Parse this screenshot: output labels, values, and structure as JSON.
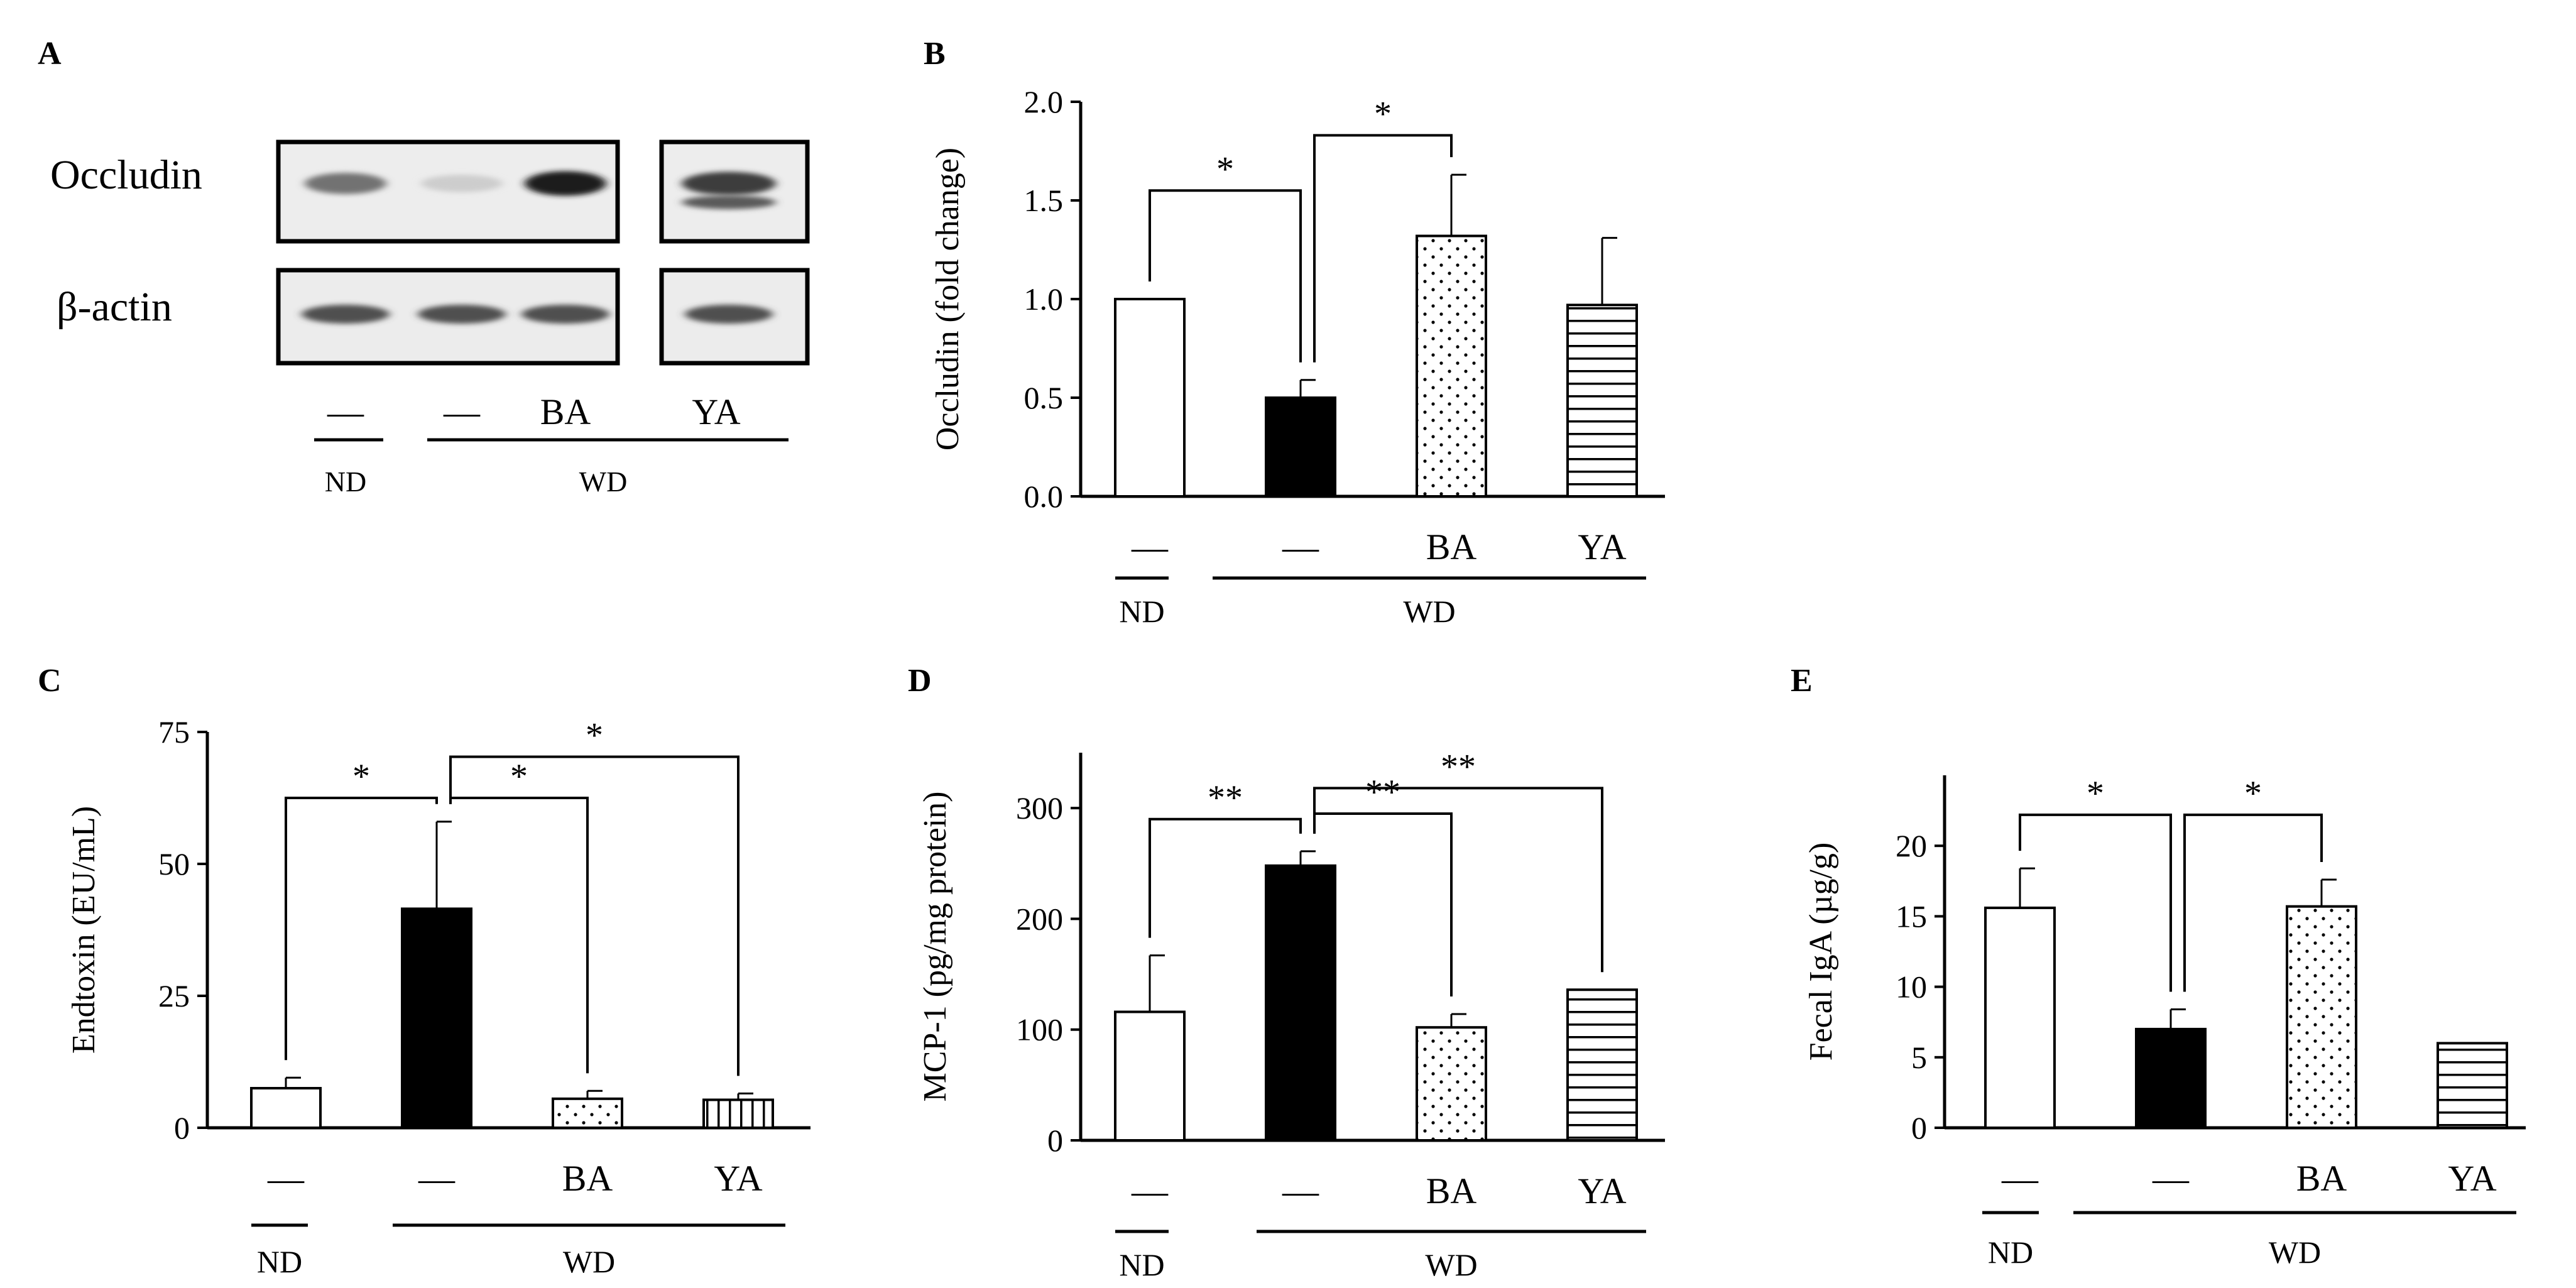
{
  "figure": {
    "panel_a": {
      "label": "A",
      "rows": [
        {
          "label": "Occludin",
          "bands": [
            0.55,
            0.12,
            0.95,
            0.8
          ]
        },
        {
          "label": "β-actin",
          "bands": [
            0.72,
            0.72,
            0.72,
            0.72
          ]
        }
      ],
      "lanes": [
        "—",
        "—",
        "BA",
        "YA"
      ],
      "groups": [
        {
          "label": "ND"
        },
        {
          "label": "WD"
        }
      ]
    }
  },
  "chart_data": [
    {
      "panel": "B",
      "type": "bar",
      "ylabel": "Occludin (fold change)",
      "ylim": [
        0,
        2.0
      ],
      "yticks": [
        "0.0",
        "0.5",
        "1.0",
        "1.5",
        "2.0"
      ],
      "categories": [
        "—",
        "—",
        "BA",
        "YA"
      ],
      "values": [
        1.0,
        0.5,
        1.32,
        0.97
      ],
      "errors": [
        0,
        0.09,
        0.31,
        0.34
      ],
      "patterns": [
        "open",
        "solid",
        "dots",
        "hlines"
      ],
      "groups": [
        {
          "label": "ND"
        },
        {
          "label": "WD"
        }
      ],
      "significance": [
        {
          "from": 0,
          "to": 1,
          "label": "*",
          "y": 1.55
        },
        {
          "from": 1,
          "to": 2,
          "label": "*",
          "y": 1.83
        }
      ]
    },
    {
      "panel": "C",
      "type": "bar",
      "ylabel": "Endtoxin (EU/mL)",
      "ylim": [
        0,
        75
      ],
      "yticks": [
        "0",
        "25",
        "50",
        "75"
      ],
      "categories": [
        "—",
        "—",
        "BA",
        "YA"
      ],
      "values": [
        7.5,
        41.5,
        5.5,
        5.3
      ],
      "errors": [
        2.0,
        16.5,
        1.5,
        1.2
      ],
      "patterns": [
        "open",
        "solid",
        "dots",
        "vlines"
      ],
      "groups": [
        {
          "label": "ND"
        },
        {
          "label": "WD"
        }
      ],
      "significance": [
        {
          "from": 0,
          "to": 1,
          "label": "*",
          "y": 62.5
        },
        {
          "from": 1,
          "to": 2,
          "label": "*",
          "y": 62.5
        },
        {
          "from": 1,
          "to": 3,
          "label": "*",
          "y": 70.3
        }
      ]
    },
    {
      "panel": "D",
      "type": "bar",
      "ylabel": "MCP-1 (pg/mg protein)",
      "ylim": [
        0,
        350
      ],
      "yticks": [
        "0",
        "100",
        "200",
        "300"
      ],
      "categories": [
        "—",
        "—",
        "BA",
        "YA"
      ],
      "values": [
        116,
        248,
        102,
        136
      ],
      "errors": [
        51,
        13,
        12,
        0
      ],
      "patterns": [
        "open",
        "solid",
        "dots",
        "hlines"
      ],
      "groups": [
        {
          "label": "ND"
        },
        {
          "label": "WD"
        }
      ],
      "significance": [
        {
          "from": 0,
          "to": 1,
          "label": "**",
          "y": 290
        },
        {
          "from": 1,
          "to": 2,
          "label": "**",
          "y": 295
        },
        {
          "from": 1,
          "to": 3,
          "label": "**",
          "y": 318
        }
      ]
    },
    {
      "panel": "E",
      "type": "bar",
      "ylabel": "Fecal IgA (µg/g)",
      "ylim": [
        0,
        25
      ],
      "yticks": [
        "0",
        "5",
        "10",
        "15",
        "20"
      ],
      "categories": [
        "—",
        "—",
        "BA",
        "YA"
      ],
      "values": [
        15.6,
        7.0,
        15.7,
        6.0
      ],
      "errors": [
        2.8,
        1.4,
        1.9,
        0
      ],
      "patterns": [
        "open",
        "solid",
        "dots",
        "hlines"
      ],
      "groups": [
        {
          "label": "ND"
        },
        {
          "label": "WD"
        }
      ],
      "significance": [
        {
          "from": 0,
          "to": 1,
          "label": "*",
          "y": 22.2
        },
        {
          "from": 1,
          "to": 2,
          "label": "*",
          "y": 22.2
        }
      ]
    }
  ]
}
